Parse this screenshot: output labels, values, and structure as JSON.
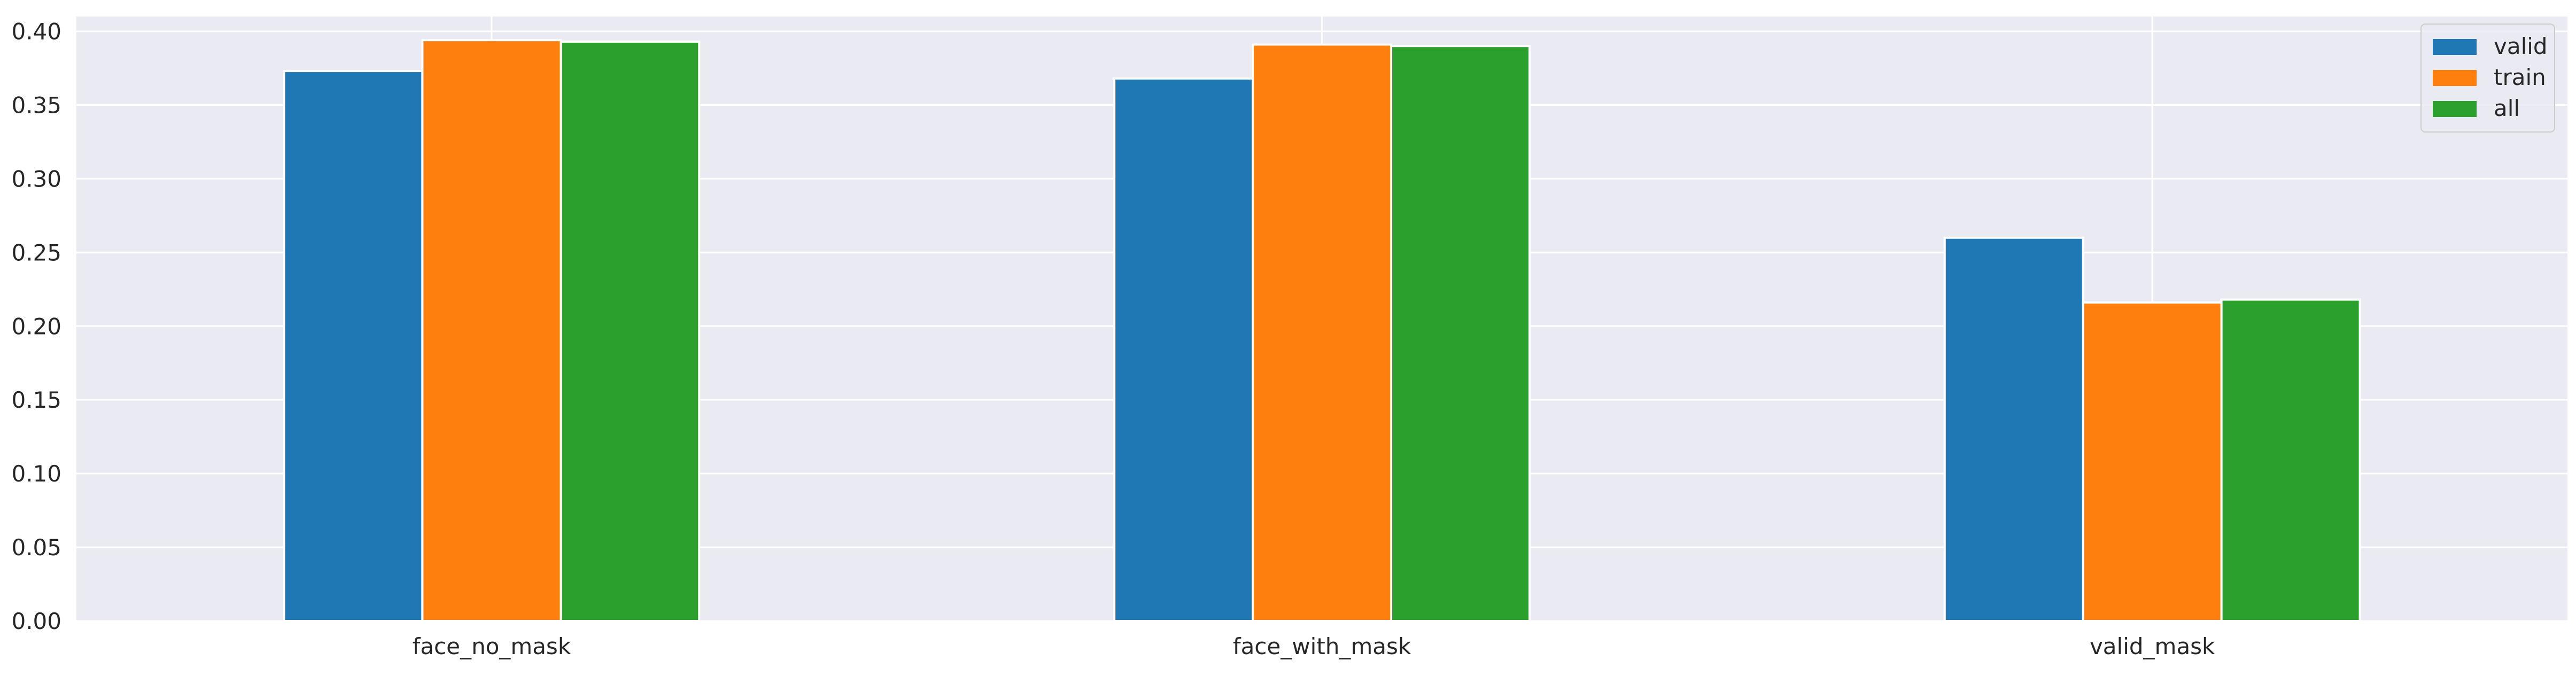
{
  "chart_data": {
    "type": "bar",
    "title": "",
    "xlabel": "",
    "ylabel": "",
    "categories": [
      "face_no_mask",
      "face_with_mask",
      "valid_mask"
    ],
    "series": [
      {
        "name": "valid",
        "color": "#1f77b4",
        "values": [
          0.373,
          0.368,
          0.26
        ]
      },
      {
        "name": "train",
        "color": "#ff7f0e",
        "values": [
          0.394,
          0.391,
          0.216
        ]
      },
      {
        "name": "all",
        "color": "#2ca02c",
        "values": [
          0.393,
          0.39,
          0.218
        ]
      }
    ],
    "ylim": [
      0,
      0.41
    ],
    "yticks": [
      "0.00",
      "0.05",
      "0.10",
      "0.15",
      "0.20",
      "0.25",
      "0.30",
      "0.35",
      "0.40"
    ],
    "grid": true,
    "legend_position": "top-right",
    "background_color": "#eaeaf2",
    "grid_color": "#ffffff"
  }
}
